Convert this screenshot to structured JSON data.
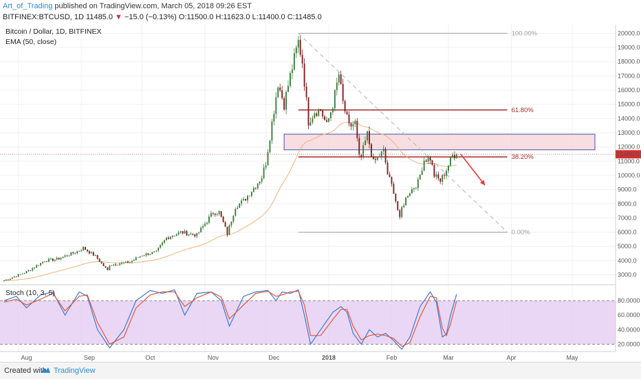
{
  "header": {
    "author": "Art_of_Trading",
    "published_text": "published on TradingView.com, March 05, 2018 09:26 EST",
    "symbol": "BITFINEX:BTCUSD, 1D",
    "last": "11485.0",
    "change": "−15.0 (−0.13%)",
    "open": "O:11500.0",
    "high": "H:11623.0",
    "low": "L:11400.0",
    "close": "C:11485.0"
  },
  "legend": {
    "title": "Bitcoin / Dollar, 1D, BITFINEX",
    "indicator": "EMA (50, close)",
    "stoch": "Stoch (10, 3, 5)"
  },
  "footer": {
    "created_with": "Created with",
    "brand": "TradingView"
  },
  "colors": {
    "up": "#3b7d3b",
    "down": "#7a1f1f",
    "ema": "#f0b27a",
    "fib_high": "#9e9e9e",
    "fib_mid": "#a62a2a",
    "zone_fill": "#f5d3d6",
    "zone_border": "#3f51b5",
    "stoch_k": "#3a7bd5",
    "stoch_d": "#e2583e",
    "stoch_band": "#e3c9f1",
    "price_line": "#e07070",
    "arrow": "#e53935"
  },
  "chart_data": [
    {
      "type": "candlestick",
      "title": "Bitcoin / Dollar, 1D, BITFINEX",
      "last_price": 11485.0,
      "ylim": [
        2300,
        20600
      ],
      "y_ticks": [
        3000,
        4000,
        5000,
        6000,
        7000,
        8000,
        9000,
        10000,
        11000,
        12000,
        13000,
        14000,
        15000,
        16000,
        17000,
        18000,
        19000,
        20000
      ],
      "x_labels": [
        "Aug",
        "Sep",
        "Oct",
        "Nov",
        "Dec",
        "2018",
        "Feb",
        "Mar",
        "Apr",
        "May"
      ],
      "close_anchors": [
        {
          "date": "2017-07-25",
          "close": 2600
        },
        {
          "date": "2017-08-05",
          "close": 3200
        },
        {
          "date": "2017-08-14",
          "close": 4000
        },
        {
          "date": "2017-08-20",
          "close": 4100
        },
        {
          "date": "2017-08-31",
          "close": 4700
        },
        {
          "date": "2017-09-02",
          "close": 4900
        },
        {
          "date": "2017-09-08",
          "close": 4300
        },
        {
          "date": "2017-09-14",
          "close": 3300
        },
        {
          "date": "2017-09-15",
          "close": 3700
        },
        {
          "date": "2017-09-25",
          "close": 3900
        },
        {
          "date": "2017-10-01",
          "close": 4400
        },
        {
          "date": "2017-10-08",
          "close": 4600
        },
        {
          "date": "2017-10-13",
          "close": 5600
        },
        {
          "date": "2017-10-20",
          "close": 6000
        },
        {
          "date": "2017-10-28",
          "close": 5800
        },
        {
          "date": "2017-11-05",
          "close": 7400
        },
        {
          "date": "2017-11-08",
          "close": 7400
        },
        {
          "date": "2017-11-12",
          "close": 5900
        },
        {
          "date": "2017-11-16",
          "close": 7800
        },
        {
          "date": "2017-11-20",
          "close": 8200
        },
        {
          "date": "2017-11-26",
          "close": 9300
        },
        {
          "date": "2017-11-29",
          "close": 9900
        },
        {
          "date": "2017-12-01",
          "close": 10900
        },
        {
          "date": "2017-12-07",
          "close": 16500
        },
        {
          "date": "2017-12-10",
          "close": 15000
        },
        {
          "date": "2017-12-13",
          "close": 17000
        },
        {
          "date": "2017-12-17",
          "close": 19400
        },
        {
          "date": "2017-12-19",
          "close": 18000
        },
        {
          "date": "2017-12-22",
          "close": 13800
        },
        {
          "date": "2017-12-25",
          "close": 14500
        },
        {
          "date": "2017-12-28",
          "close": 14600
        },
        {
          "date": "2017-12-31",
          "close": 13500
        },
        {
          "date": "2018-01-03",
          "close": 15000
        },
        {
          "date": "2018-01-06",
          "close": 17100
        },
        {
          "date": "2018-01-08",
          "close": 15100
        },
        {
          "date": "2018-01-11",
          "close": 13400
        },
        {
          "date": "2018-01-14",
          "close": 13700
        },
        {
          "date": "2018-01-16",
          "close": 11200
        },
        {
          "date": "2018-01-17",
          "close": 11300
        },
        {
          "date": "2018-01-20",
          "close": 12900
        },
        {
          "date": "2018-01-23",
          "close": 10900
        },
        {
          "date": "2018-01-28",
          "close": 11700
        },
        {
          "date": "2018-01-30",
          "close": 10100
        },
        {
          "date": "2018-02-02",
          "close": 8900
        },
        {
          "date": "2018-02-05",
          "close": 6900
        },
        {
          "date": "2018-02-06",
          "close": 7700
        },
        {
          "date": "2018-02-09",
          "close": 8700
        },
        {
          "date": "2018-02-14",
          "close": 9500
        },
        {
          "date": "2018-02-17",
          "close": 11100
        },
        {
          "date": "2018-02-20",
          "close": 11200
        },
        {
          "date": "2018-02-22",
          "close": 10000
        },
        {
          "date": "2018-02-25",
          "close": 9600
        },
        {
          "date": "2018-02-28",
          "close": 10400
        },
        {
          "date": "2018-03-03",
          "close": 11400
        },
        {
          "date": "2018-03-05",
          "close": 11485
        }
      ],
      "fibonacci": [
        {
          "level": "100.00%",
          "price": 20000
        },
        {
          "level": "61.80%",
          "price": 14600
        },
        {
          "level": "38.20%",
          "price": 11300
        },
        {
          "level": "0.00%",
          "price": 6000
        }
      ],
      "resistance_zone": {
        "low": 11800,
        "high": 12900
      }
    },
    {
      "type": "line",
      "title": "Stoch (10, 3, 5)",
      "ylim": [
        10,
        100
      ],
      "y_ticks": [
        20,
        40,
        60,
        80
      ],
      "levels": [
        20,
        80
      ],
      "series": [
        {
          "name": "%K",
          "points": [
            [
              "2017-07-25",
              80
            ],
            [
              "2017-07-31",
              86
            ],
            [
              "2017-08-05",
              70
            ],
            [
              "2017-08-12",
              88
            ],
            [
              "2017-08-18",
              92
            ],
            [
              "2017-08-24",
              60
            ],
            [
              "2017-08-31",
              92
            ],
            [
              "2017-09-04",
              86
            ],
            [
              "2017-09-09",
              40
            ],
            [
              "2017-09-15",
              15
            ],
            [
              "2017-09-22",
              40
            ],
            [
              "2017-09-28",
              80
            ],
            [
              "2017-10-05",
              94
            ],
            [
              "2017-10-11",
              90
            ],
            [
              "2017-10-17",
              95
            ],
            [
              "2017-10-22",
              60
            ],
            [
              "2017-10-28",
              90
            ],
            [
              "2017-11-04",
              92
            ],
            [
              "2017-11-09",
              80
            ],
            [
              "2017-11-13",
              45
            ],
            [
              "2017-11-20",
              86
            ],
            [
              "2017-11-26",
              92
            ],
            [
              "2017-12-02",
              94
            ],
            [
              "2017-12-06",
              80
            ],
            [
              "2017-12-09",
              92
            ],
            [
              "2017-12-13",
              90
            ],
            [
              "2017-12-17",
              95
            ],
            [
              "2017-12-20",
              60
            ],
            [
              "2017-12-23",
              20
            ],
            [
              "2017-12-28",
              40
            ],
            [
              "2018-01-03",
              64
            ],
            [
              "2018-01-07",
              72
            ],
            [
              "2018-01-10",
              64
            ],
            [
              "2018-01-13",
              35
            ],
            [
              "2018-01-17",
              20
            ],
            [
              "2018-01-21",
              40
            ],
            [
              "2018-01-25",
              30
            ],
            [
              "2018-01-29",
              35
            ],
            [
              "2018-02-02",
              25
            ],
            [
              "2018-02-06",
              13
            ],
            [
              "2018-02-10",
              30
            ],
            [
              "2018-02-15",
              72
            ],
            [
              "2018-02-20",
              92
            ],
            [
              "2018-02-23",
              78
            ],
            [
              "2018-02-26",
              30
            ],
            [
              "2018-02-28",
              34
            ],
            [
              "2018-03-02",
              60
            ],
            [
              "2018-03-05",
              89
            ]
          ]
        },
        {
          "name": "%D",
          "points": [
            [
              "2017-07-25",
              78
            ],
            [
              "2017-07-31",
              82
            ],
            [
              "2017-08-05",
              74
            ],
            [
              "2017-08-12",
              82
            ],
            [
              "2017-08-18",
              90
            ],
            [
              "2017-08-24",
              66
            ],
            [
              "2017-08-31",
              86
            ],
            [
              "2017-09-04",
              88
            ],
            [
              "2017-09-09",
              50
            ],
            [
              "2017-09-15",
              20
            ],
            [
              "2017-09-22",
              30
            ],
            [
              "2017-09-28",
              70
            ],
            [
              "2017-10-05",
              88
            ],
            [
              "2017-10-11",
              92
            ],
            [
              "2017-10-17",
              92
            ],
            [
              "2017-10-22",
              72
            ],
            [
              "2017-10-28",
              84
            ],
            [
              "2017-11-04",
              92
            ],
            [
              "2017-11-09",
              85
            ],
            [
              "2017-11-13",
              55
            ],
            [
              "2017-11-20",
              74
            ],
            [
              "2017-11-26",
              90
            ],
            [
              "2017-12-02",
              93
            ],
            [
              "2017-12-06",
              86
            ],
            [
              "2017-12-09",
              88
            ],
            [
              "2017-12-13",
              92
            ],
            [
              "2017-12-17",
              93
            ],
            [
              "2017-12-20",
              74
            ],
            [
              "2017-12-23",
              32
            ],
            [
              "2017-12-28",
              32
            ],
            [
              "2018-01-03",
              54
            ],
            [
              "2018-01-07",
              68
            ],
            [
              "2018-01-10",
              68
            ],
            [
              "2018-01-13",
              45
            ],
            [
              "2018-01-17",
              26
            ],
            [
              "2018-01-21",
              32
            ],
            [
              "2018-01-25",
              34
            ],
            [
              "2018-01-29",
              32
            ],
            [
              "2018-02-02",
              28
            ],
            [
              "2018-02-06",
              17
            ],
            [
              "2018-02-10",
              22
            ],
            [
              "2018-02-15",
              58
            ],
            [
              "2018-02-20",
              86
            ],
            [
              "2018-02-23",
              84
            ],
            [
              "2018-02-26",
              42
            ],
            [
              "2018-02-28",
              32
            ],
            [
              "2018-03-02",
              48
            ],
            [
              "2018-03-05",
              80
            ]
          ]
        }
      ]
    }
  ]
}
